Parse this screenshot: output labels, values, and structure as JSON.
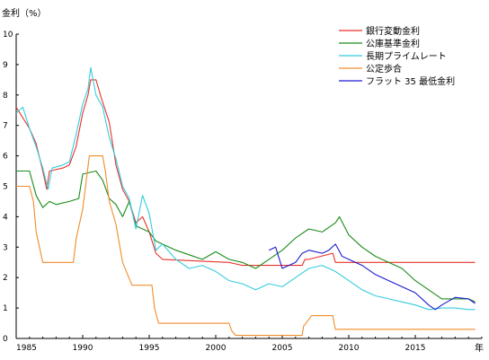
{
  "chart_data": {
    "type": "line",
    "title": "",
    "ylabel": "金利（%）",
    "xlabel": "年",
    "xlim": [
      1985,
      2020
    ],
    "ylim": [
      0,
      10
    ],
    "x_ticks": [
      1985,
      1990,
      1995,
      2000,
      2005,
      2010,
      2015
    ],
    "y_ticks": [
      0,
      1,
      2,
      3,
      4,
      5,
      6,
      7,
      8,
      9,
      10
    ],
    "grid": false,
    "legend_position": "top-right",
    "series": [
      {
        "name": "銀行変動金利",
        "color": "#e8322b",
        "points": [
          [
            1985,
            7.6
          ],
          [
            1986,
            6.9
          ],
          [
            1986.5,
            6.4
          ],
          [
            1987,
            5.5
          ],
          [
            1987.3,
            4.9
          ],
          [
            1987.5,
            5.5
          ],
          [
            1988.5,
            5.6
          ],
          [
            1989,
            5.7
          ],
          [
            1989.5,
            6.3
          ],
          [
            1990,
            7.4
          ],
          [
            1990.4,
            8.0
          ],
          [
            1990.6,
            8.5
          ],
          [
            1991,
            8.5
          ],
          [
            1991.4,
            7.9
          ],
          [
            1992,
            7.1
          ],
          [
            1992.5,
            5.7
          ],
          [
            1993,
            4.9
          ],
          [
            1993.5,
            4.5
          ],
          [
            1994,
            3.8
          ],
          [
            1994.5,
            4.0
          ],
          [
            1995,
            3.5
          ],
          [
            1995.5,
            2.8
          ],
          [
            1996,
            2.6
          ],
          [
            2001,
            2.5
          ],
          [
            2002,
            2.4
          ],
          [
            2006.5,
            2.4
          ],
          [
            2006.7,
            2.6
          ],
          [
            2007,
            2.6
          ],
          [
            2008.8,
            2.8
          ],
          [
            2009,
            2.5
          ],
          [
            2019.5,
            2.5
          ]
        ]
      },
      {
        "name": "公庫基準金利",
        "color": "#1a8c1a",
        "points": [
          [
            1985,
            5.5
          ],
          [
            1986,
            5.5
          ],
          [
            1986.5,
            4.7
          ],
          [
            1987,
            4.3
          ],
          [
            1987.5,
            4.5
          ],
          [
            1988,
            4.4
          ],
          [
            1989,
            4.5
          ],
          [
            1989.7,
            4.6
          ],
          [
            1990,
            5.4
          ],
          [
            1991,
            5.5
          ],
          [
            1991.5,
            5.2
          ],
          [
            1992,
            4.6
          ],
          [
            1992.5,
            4.4
          ],
          [
            1993,
            4.0
          ],
          [
            1993.5,
            4.5
          ],
          [
            1994,
            3.7
          ],
          [
            1995,
            3.5
          ],
          [
            1995.5,
            3.2
          ],
          [
            1996,
            3.1
          ],
          [
            1997,
            2.9
          ],
          [
            1998,
            2.75
          ],
          [
            1999,
            2.6
          ],
          [
            2000,
            2.85
          ],
          [
            2001,
            2.6
          ],
          [
            2002,
            2.5
          ],
          [
            2003,
            2.3
          ],
          [
            2004,
            2.6
          ],
          [
            2005,
            2.9
          ],
          [
            2006,
            3.3
          ],
          [
            2007,
            3.6
          ],
          [
            2008,
            3.5
          ],
          [
            2009,
            3.8
          ],
          [
            2009.3,
            4.0
          ],
          [
            2010,
            3.4
          ],
          [
            2011,
            3.0
          ],
          [
            2012,
            2.7
          ],
          [
            2013,
            2.5
          ],
          [
            2014,
            2.3
          ],
          [
            2015,
            1.9
          ],
          [
            2016,
            1.6
          ],
          [
            2017,
            1.3
          ],
          [
            2018,
            1.3
          ],
          [
            2019,
            1.3
          ],
          [
            2019.5,
            1.2
          ]
        ]
      },
      {
        "name": "長期プライムレート",
        "color": "#33ccdd",
        "points": [
          [
            1985,
            7.4
          ],
          [
            1985.5,
            7.6
          ],
          [
            1986,
            6.9
          ],
          [
            1986.5,
            6.3
          ],
          [
            1987,
            5.6
          ],
          [
            1987.4,
            4.9
          ],
          [
            1987.7,
            5.6
          ],
          [
            1988.5,
            5.7
          ],
          [
            1989,
            5.8
          ],
          [
            1989.5,
            6.7
          ],
          [
            1990,
            7.7
          ],
          [
            1990.4,
            8.2
          ],
          [
            1990.6,
            8.9
          ],
          [
            1991,
            8.0
          ],
          [
            1991.5,
            7.6
          ],
          [
            1992,
            6.6
          ],
          [
            1992.5,
            5.9
          ],
          [
            1993,
            5.0
          ],
          [
            1993.5,
            4.6
          ],
          [
            1994,
            3.6
          ],
          [
            1994.5,
            4.7
          ],
          [
            1995,
            4.1
          ],
          [
            1995.5,
            2.9
          ],
          [
            1996,
            3.1
          ],
          [
            1997,
            2.6
          ],
          [
            1998,
            2.3
          ],
          [
            1999,
            2.4
          ],
          [
            2000,
            2.2
          ],
          [
            2001,
            1.9
          ],
          [
            2002,
            1.8
          ],
          [
            2003,
            1.6
          ],
          [
            2004,
            1.8
          ],
          [
            2005,
            1.7
          ],
          [
            2006,
            2.0
          ],
          [
            2007,
            2.3
          ],
          [
            2008,
            2.4
          ],
          [
            2009,
            2.2
          ],
          [
            2010,
            1.9
          ],
          [
            2011,
            1.6
          ],
          [
            2012,
            1.4
          ],
          [
            2013,
            1.3
          ],
          [
            2014,
            1.2
          ],
          [
            2015,
            1.1
          ],
          [
            2016,
            0.95
          ],
          [
            2017,
            1.0
          ],
          [
            2018,
            1.0
          ],
          [
            2019,
            0.95
          ],
          [
            2019.5,
            0.95
          ]
        ]
      },
      {
        "name": "公定歩合",
        "color": "#f08c2a",
        "points": [
          [
            1985,
            5.0
          ],
          [
            1986,
            5.0
          ],
          [
            1986.3,
            4.5
          ],
          [
            1986.5,
            3.5
          ],
          [
            1987,
            2.5
          ],
          [
            1989.3,
            2.5
          ],
          [
            1989.5,
            3.25
          ],
          [
            1990,
            4.25
          ],
          [
            1990.5,
            6.0
          ],
          [
            1991.5,
            6.0
          ],
          [
            1991.7,
            5.5
          ],
          [
            1992,
            4.5
          ],
          [
            1992.5,
            3.75
          ],
          [
            1993,
            2.5
          ],
          [
            1993.7,
            1.75
          ],
          [
            1995.2,
            1.75
          ],
          [
            1995.4,
            1.0
          ],
          [
            1995.7,
            0.5
          ],
          [
            2001,
            0.5
          ],
          [
            2001.2,
            0.25
          ],
          [
            2001.5,
            0.1
          ],
          [
            2006.5,
            0.1
          ],
          [
            2006.6,
            0.4
          ],
          [
            2007.2,
            0.75
          ],
          [
            2008.8,
            0.75
          ],
          [
            2008.9,
            0.5
          ],
          [
            2009,
            0.3
          ],
          [
            2019.5,
            0.3
          ]
        ]
      },
      {
        "name": "フラット 35 最低金利",
        "color": "#1a1ad0",
        "points": [
          [
            2004,
            2.9
          ],
          [
            2004.5,
            3.0
          ],
          [
            2005,
            2.3
          ],
          [
            2006,
            2.5
          ],
          [
            2006.5,
            2.8
          ],
          [
            2007,
            2.9
          ],
          [
            2008,
            2.8
          ],
          [
            2008.5,
            2.9
          ],
          [
            2009,
            3.1
          ],
          [
            2009.5,
            2.7
          ],
          [
            2010,
            2.6
          ],
          [
            2011,
            2.4
          ],
          [
            2012,
            2.1
          ],
          [
            2013,
            1.9
          ],
          [
            2014,
            1.7
          ],
          [
            2015,
            1.5
          ],
          [
            2016,
            1.1
          ],
          [
            2016.5,
            0.95
          ],
          [
            2017,
            1.1
          ],
          [
            2018,
            1.35
          ],
          [
            2019,
            1.3
          ],
          [
            2019.5,
            1.15
          ]
        ]
      }
    ]
  }
}
